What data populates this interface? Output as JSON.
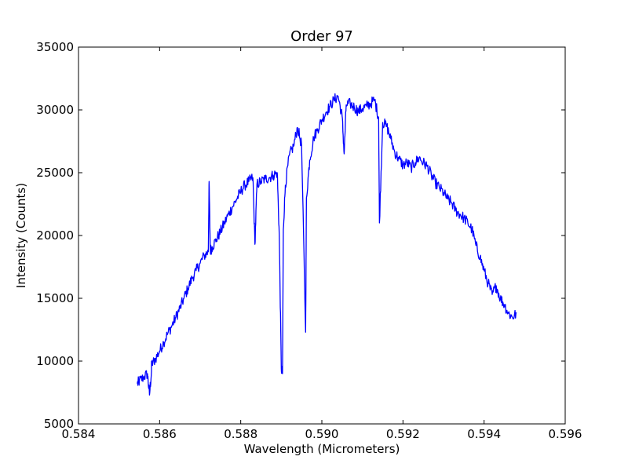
{
  "chart_data": {
    "type": "line",
    "title": "Order 97",
    "xlabel": "Wavelength (Micrometers)",
    "ylabel": "Intensity (Counts)",
    "xlim": [
      0.584,
      0.596
    ],
    "ylim": [
      5000,
      35000
    ],
    "xticks": [
      0.584,
      0.586,
      0.588,
      0.59,
      0.592,
      0.594,
      0.596
    ],
    "xtick_labels": [
      "0.584",
      "0.586",
      "0.588",
      "0.590",
      "0.592",
      "0.594",
      "0.596"
    ],
    "yticks": [
      5000,
      10000,
      15000,
      20000,
      25000,
      30000,
      35000
    ],
    "ytick_labels": [
      "5000",
      "10000",
      "15000",
      "20000",
      "25000",
      "30000",
      "35000"
    ],
    "grid": false,
    "line_color": "#0000ff",
    "series": [
      {
        "x": [
          0.58545,
          0.5855,
          0.5856,
          0.5857,
          0.58575,
          0.5858,
          0.5858,
          0.5859,
          0.586,
          0.5861,
          0.5862,
          0.5863,
          0.5864,
          0.5865,
          0.5866,
          0.5867,
          0.5868,
          0.5869,
          0.587,
          0.5871,
          0.5872,
          0.58722,
          0.58725,
          0.5873,
          0.5874,
          0.5875,
          0.5876,
          0.5877,
          0.5878,
          0.5879,
          0.588,
          0.5881,
          0.5882,
          0.5883,
          0.58835,
          0.5884,
          0.5885,
          0.5886,
          0.5887,
          0.5888,
          0.5889,
          0.58895,
          0.589,
          0.58903,
          0.58905,
          0.5891,
          0.5892,
          0.5893,
          0.5894,
          0.5895,
          0.5896,
          0.58962,
          0.5897,
          0.5898,
          0.5899,
          0.59,
          0.5901,
          0.5902,
          0.5903,
          0.5904,
          0.5905,
          0.59055,
          0.5906,
          0.5907,
          0.5908,
          0.5909,
          0.591,
          0.5911,
          0.5912,
          0.5913,
          0.5914,
          0.59142,
          0.5915,
          0.5916,
          0.5917,
          0.5918,
          0.5919,
          0.592,
          0.5921,
          0.5922,
          0.5923,
          0.5924,
          0.5925,
          0.5926,
          0.5927,
          0.5928,
          0.5929,
          0.593,
          0.5931,
          0.5932,
          0.5933,
          0.5934,
          0.5935,
          0.5936,
          0.5937,
          0.5938,
          0.5939,
          0.594,
          0.5941,
          0.5942,
          0.5943,
          0.5944,
          0.5945,
          0.5946,
          0.5947,
          0.5948
        ],
        "y": [
          8200,
          8400,
          8700,
          9000,
          7300,
          9200,
          9700,
          10200,
          10800,
          11500,
          12200,
          12800,
          13500,
          14200,
          15000,
          15800,
          16600,
          17200,
          17800,
          18400,
          18700,
          24300,
          18800,
          19100,
          19700,
          20300,
          21000,
          21700,
          22300,
          22900,
          23500,
          24000,
          24300,
          24600,
          19300,
          24100,
          24300,
          24500,
          24600,
          24800,
          25000,
          20000,
          9400,
          9000,
          20500,
          24000,
          26400,
          27100,
          28600,
          27200,
          12300,
          23000,
          26000,
          27800,
          28500,
          29200,
          29800,
          30300,
          30800,
          31100,
          29500,
          26500,
          30400,
          30500,
          30200,
          29900,
          30100,
          30300,
          30500,
          30800,
          29400,
          21000,
          29000,
          28700,
          27700,
          26600,
          26100,
          25600,
          25800,
          25400,
          25800,
          26200,
          25800,
          25500,
          24800,
          24200,
          23800,
          23400,
          22900,
          22600,
          22000,
          21700,
          21400,
          21000,
          20500,
          19200,
          18300,
          17200,
          16200,
          15300,
          16000,
          15000,
          14500,
          13800,
          13500,
          13800
        ]
      }
    ]
  }
}
